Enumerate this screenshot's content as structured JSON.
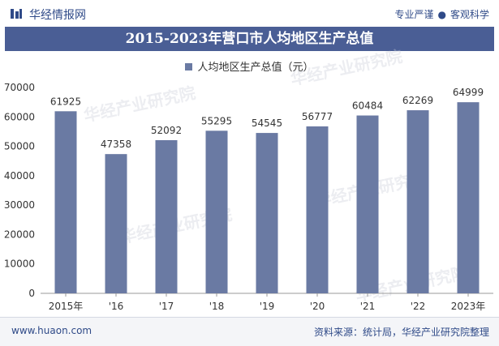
{
  "header": {
    "site_name": "华经情报网",
    "slogan_left": "专业严谨",
    "slogan_right": "客观科学"
  },
  "watermark": "华经产业研究院",
  "colors": {
    "title_bar": "#4a5e95",
    "bar": "#6a7aa3",
    "brand": "#2f4a88"
  },
  "chart_data": {
    "type": "bar",
    "title": "2015-2023年营口市人均地区生产总值",
    "legend": [
      "人均地区生产总值（元）"
    ],
    "legend_position": "top-center",
    "categories": [
      "2015年",
      "'16",
      "'17",
      "'18",
      "'19",
      "'20",
      "'21",
      "'22",
      "2023年"
    ],
    "series": [
      {
        "name": "人均地区生产总值（元）",
        "values": [
          61925,
          47358,
          52092,
          55295,
          54545,
          56777,
          60484,
          62269,
          64999
        ]
      }
    ],
    "data_labels": [
      "61925",
      "47358",
      "52092",
      "55295",
      "54545",
      "56777",
      "60484",
      "62269",
      "64999"
    ],
    "y_ticks": [
      "0",
      "10000",
      "20000",
      "30000",
      "40000",
      "50000",
      "60000",
      "70000"
    ],
    "ylim": [
      0,
      70000
    ],
    "grid": false
  },
  "footer": {
    "url": "www.huaon.com",
    "source": "资料来源：统计局，华经产业研究院整理"
  }
}
